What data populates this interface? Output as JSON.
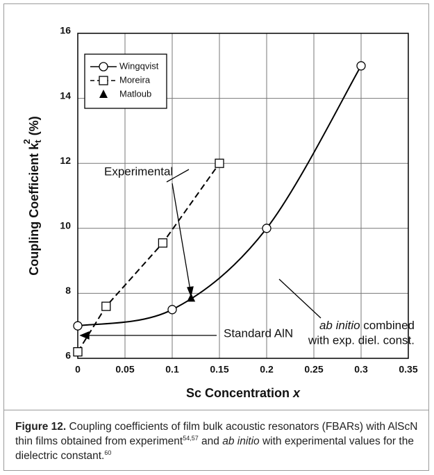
{
  "chart_data": {
    "type": "line",
    "x_label": {
      "main": "Sc Concentration ",
      "var": "x"
    },
    "y_label": {
      "main": "Coupling Coefficient k",
      "sub": "t",
      "sup": "2",
      "unit": " (%)"
    },
    "xlim": [
      0,
      0.35
    ],
    "xticks": [
      0,
      0.05,
      0.1,
      0.15,
      0.2,
      0.25,
      0.3,
      0.35
    ],
    "ylim": [
      6,
      16
    ],
    "yticks": [
      6,
      8,
      10,
      12,
      14,
      16
    ],
    "grid": true,
    "legend": "upper left",
    "series": [
      {
        "name": "Wingqvist",
        "color": "#000000",
        "marker": "circle",
        "style": "solid",
        "x": [
          0,
          0.1,
          0.2,
          0.3
        ],
        "values": [
          7,
          7.5,
          10,
          15
        ]
      },
      {
        "name": "Moreira",
        "color": "#000000",
        "marker": "square",
        "style": "dashed",
        "x": [
          0,
          0.03,
          0.09,
          0.15
        ],
        "values": [
          6.2,
          7.6,
          9.55,
          12
        ]
      },
      {
        "name": "Matloub",
        "color": "#000000",
        "marker": "triangle",
        "style": "none",
        "x": [
          0.12
        ],
        "values": [
          7.85
        ]
      }
    ],
    "annotations": [
      "Experimental",
      "ab initio",
      " combined",
      "with exp. diel. const.",
      "Standard  AlN"
    ]
  },
  "caption": {
    "label": "Figure 12.",
    "text1": " Coupling coefficients of film bulk acoustic resonators (FBARs) with AlScN thin films obtained from experiment",
    "ref1": "54,57",
    "text2": " and ",
    "italic": "ab initio",
    "text3": " with experimental values for the dielectric constant.",
    "ref2": "60"
  }
}
